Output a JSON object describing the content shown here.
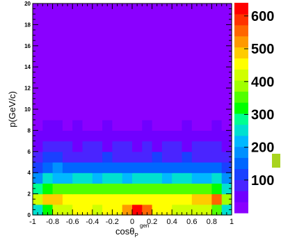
{
  "chart_data": {
    "type": "heatmap",
    "title": "",
    "xlabel": "cosθ",
    "xlabel_sup": "gen",
    "xlabel_sub": "P",
    "ylabel": "p(GeV/c)",
    "xlim": [
      -1,
      1
    ],
    "ylim": [
      0,
      20
    ],
    "nx": 20,
    "ny": 20,
    "x_major_ticks": [
      -1,
      -0.8,
      -0.6,
      -0.4,
      -0.2,
      0,
      0.2,
      0.4,
      0.6,
      0.8,
      1
    ],
    "x_tick_labels": [
      "-1",
      "-0.8",
      "-0.6",
      "-0.4",
      "-0.2",
      "0",
      "0.2",
      "0.4",
      "0.6",
      "0.8",
      "1"
    ],
    "y_major_ticks": [
      0,
      2,
      4,
      6,
      8,
      10,
      12,
      14,
      16,
      18,
      20
    ],
    "y_tick_labels": [
      "0",
      "2",
      "4",
      "6",
      "8",
      "10",
      "12",
      "14",
      "16",
      "18",
      "20"
    ],
    "zlim": [
      0,
      640
    ],
    "z_tick_values": [
      100,
      200,
      300,
      400,
      500,
      600
    ],
    "z_tick_labels": [
      "100",
      "200",
      "300",
      "400",
      "500",
      "600"
    ],
    "palette": [
      "#8a00ff",
      "#7000ff",
      "#4a24ff",
      "#1a40ff",
      "#0066ff",
      "#0090ff",
      "#00b8ff",
      "#00e0d0",
      "#00ff90",
      "#00ff00",
      "#50ff00",
      "#a0ff00",
      "#d0ff00",
      "#ffff00",
      "#ffcc00",
      "#ff9900",
      "#ff6600",
      "#ff3300",
      "#ff0000"
    ],
    "stray_marker_color": "#a8d41e",
    "rows_bottom_to_top": [
      [
        250,
        330,
        420,
        430,
        440,
        450,
        430,
        440,
        450,
        520,
        630,
        560,
        450,
        440,
        430,
        420,
        410,
        420,
        340,
        260
      ],
      [
        410,
        480,
        500,
        450,
        460,
        450,
        470,
        460,
        450,
        440,
        440,
        450,
        460,
        470,
        450,
        470,
        480,
        500,
        560,
        390
      ],
      [
        270,
        330,
        370,
        360,
        350,
        360,
        370,
        360,
        350,
        360,
        350,
        360,
        350,
        360,
        370,
        360,
        350,
        370,
        310,
        240
      ],
      [
        180,
        250,
        220,
        230,
        260,
        240,
        230,
        250,
        240,
        230,
        240,
        250,
        240,
        230,
        250,
        240,
        230,
        220,
        250,
        190
      ],
      [
        120,
        160,
        180,
        150,
        140,
        160,
        150,
        140,
        150,
        160,
        150,
        140,
        160,
        150,
        140,
        160,
        150,
        160,
        150,
        110
      ],
      [
        90,
        110,
        120,
        100,
        90,
        100,
        90,
        110,
        100,
        90,
        100,
        90,
        110,
        100,
        90,
        110,
        100,
        90,
        100,
        80
      ],
      [
        60,
        70,
        80,
        70,
        60,
        70,
        80,
        60,
        70,
        80,
        60,
        70,
        60,
        80,
        70,
        60,
        70,
        80,
        70,
        50
      ],
      [
        40,
        50,
        60,
        50,
        40,
        55,
        45,
        40,
        50,
        45,
        40,
        50,
        45,
        40,
        55,
        50,
        45,
        40,
        50,
        35
      ],
      [
        30,
        35,
        40,
        30,
        35,
        30,
        25,
        35,
        30,
        25,
        30,
        35,
        30,
        25,
        30,
        35,
        30,
        25,
        35,
        30
      ],
      [
        25,
        20,
        30,
        25,
        20,
        25,
        20,
        30,
        20,
        25,
        20,
        25,
        30,
        20,
        25,
        20,
        25,
        30,
        20,
        20
      ],
      [
        20,
        15,
        20,
        15,
        20,
        15,
        20,
        15,
        20,
        15,
        20,
        15,
        20,
        15,
        20,
        15,
        20,
        15,
        20,
        15
      ],
      [
        15,
        12,
        15,
        12,
        10,
        12,
        15,
        12,
        10,
        12,
        15,
        12,
        10,
        12,
        15,
        12,
        10,
        12,
        15,
        12
      ],
      [
        10,
        12,
        10,
        8,
        10,
        30,
        10,
        8,
        10,
        12,
        10,
        8,
        10,
        12,
        10,
        8,
        10,
        30,
        10,
        8
      ],
      [
        8,
        6,
        8,
        6,
        8,
        6,
        8,
        6,
        8,
        6,
        8,
        6,
        8,
        6,
        8,
        6,
        8,
        6,
        8,
        6
      ],
      [
        6,
        5,
        6,
        5,
        6,
        5,
        6,
        5,
        6,
        5,
        6,
        5,
        6,
        5,
        6,
        5,
        6,
        5,
        6,
        5
      ],
      [
        5,
        4,
        5,
        4,
        5,
        4,
        5,
        4,
        5,
        4,
        5,
        4,
        5,
        4,
        5,
        4,
        5,
        4,
        5,
        4
      ],
      [
        4,
        3,
        4,
        3,
        4,
        3,
        4,
        3,
        4,
        3,
        4,
        3,
        4,
        3,
        4,
        3,
        4,
        3,
        4,
        3
      ],
      [
        3,
        3,
        3,
        3,
        3,
        3,
        3,
        3,
        3,
        3,
        3,
        3,
        3,
        3,
        3,
        3,
        3,
        3,
        3,
        3
      ],
      [
        2,
        2,
        2,
        2,
        2,
        2,
        2,
        2,
        2,
        2,
        2,
        2,
        2,
        2,
        2,
        2,
        2,
        2,
        2,
        2
      ],
      [
        1,
        1,
        1,
        1,
        1,
        1,
        1,
        1,
        1,
        1,
        1,
        1,
        1,
        1,
        1,
        1,
        1,
        1,
        1,
        1
      ]
    ]
  }
}
